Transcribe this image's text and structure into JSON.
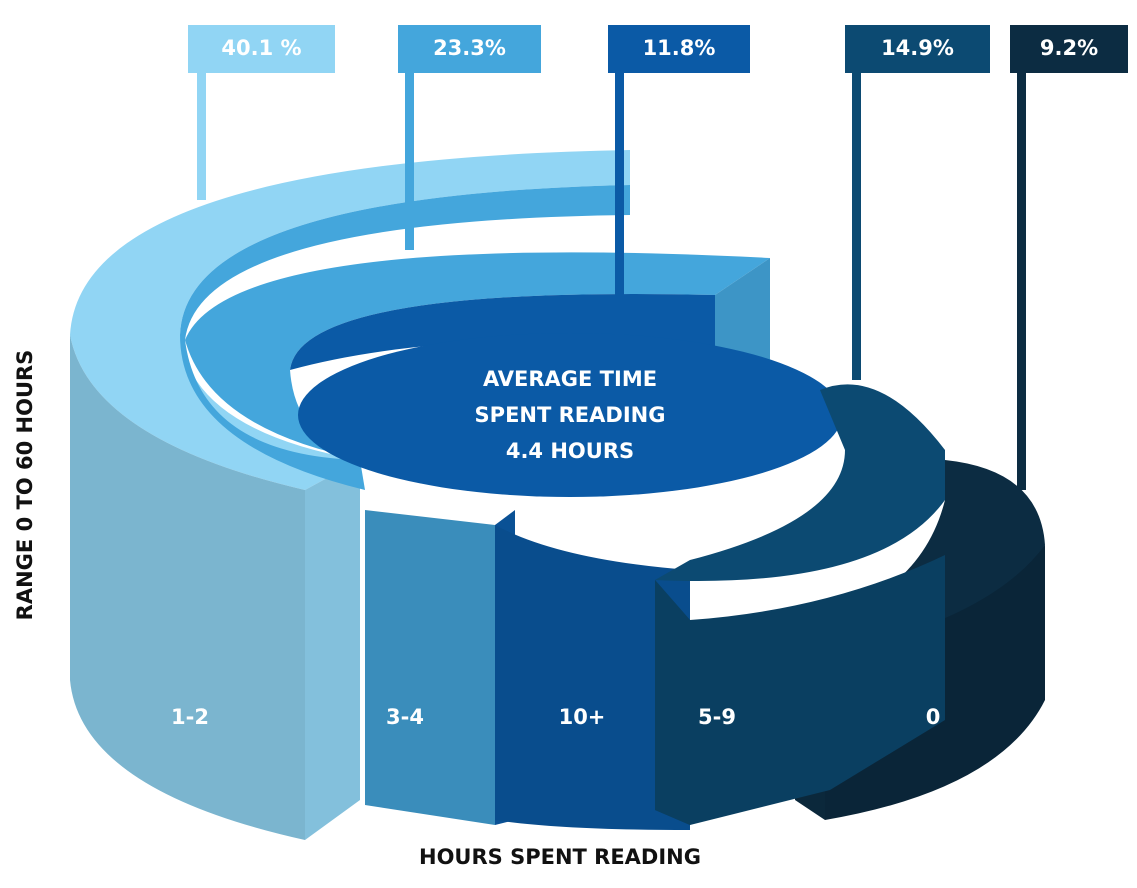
{
  "chart_data": {
    "type": "stepped-ring",
    "categories": [
      "1-2",
      "3-4",
      "10+",
      "5-9",
      "0"
    ],
    "values": [
      40.1,
      23.3,
      11.8,
      14.9,
      9.2
    ],
    "value_labels": [
      "40.1 %",
      "23.3%",
      "11.8%",
      "14.9%",
      "9.2%"
    ],
    "colors": [
      "#91d5f4",
      "#44a6dc",
      "#0b5aa6",
      "#0c4a72",
      "#0c2c42"
    ],
    "center_text": [
      "AVERAGE TIME",
      "SPENT READING",
      "4.4 HOURS"
    ],
    "x_label": "HOURS SPENT READING",
    "y_label": "RANGE 0 TO 60 HOURS"
  }
}
